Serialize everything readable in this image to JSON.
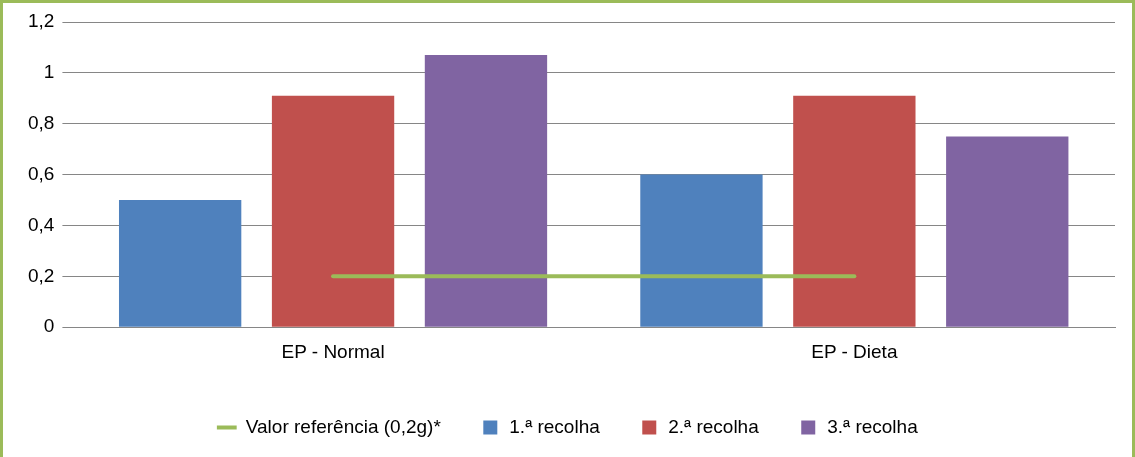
{
  "chart_data": {
    "type": "bar",
    "categories": [
      "EP - Normal",
      "EP - Dieta"
    ],
    "series": [
      {
        "name": "1.ª recolha",
        "color": "#4f81bd",
        "values": [
          0.5,
          0.6
        ]
      },
      {
        "name": "2.ª recolha",
        "color": "#c0504d",
        "values": [
          0.91,
          0.91
        ]
      },
      {
        "name": "3.ª recolha",
        "color": "#8064a2",
        "values": [
          1.07,
          0.75
        ]
      },
      {
        "name": "Valor referência (0,2g)*",
        "color": "#9bbb59",
        "type": "line",
        "values": [
          0.2,
          0.2
        ]
      }
    ],
    "ylim": [
      0,
      1.2
    ],
    "yticks": [
      0,
      {
        "value": 0.2,
        "label": "0,2"
      },
      {
        "value": 0.4,
        "label": "0,4"
      },
      {
        "value": 0.6,
        "label": "0,6"
      },
      {
        "value": 0.8,
        "label": "0,8"
      },
      1,
      {
        "value": 1.2,
        "label": "1,2"
      }
    ],
    "grid": "y",
    "legend": "bottom",
    "marker": "none",
    "line_style": "solid"
  }
}
